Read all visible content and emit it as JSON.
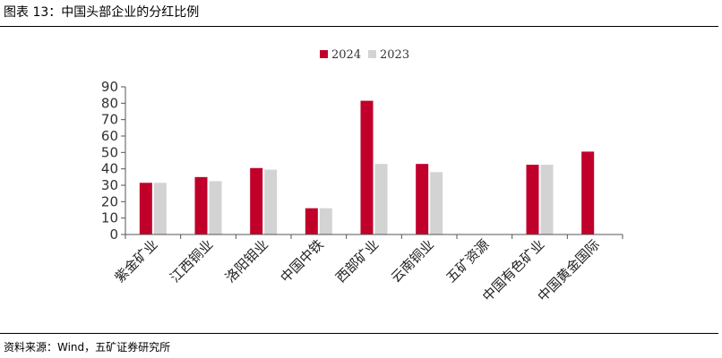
{
  "figure": {
    "title": "图表 13：中国头部企业的分红比例",
    "source": "资料来源：Wind，五矿证券研究所"
  },
  "colors": {
    "series_2024": "#c0002a",
    "series_2023": "#d3d3d3",
    "axis": "#555555"
  },
  "chart_data": {
    "type": "bar",
    "title": "",
    "xlabel": "",
    "ylabel": "",
    "ylim": [
      0,
      90
    ],
    "yticks": [
      0,
      10,
      20,
      30,
      40,
      50,
      60,
      70,
      80,
      90
    ],
    "grid": false,
    "legend_position": "top-center",
    "categories": [
      "紫金矿业",
      "江西铜业",
      "洛阳钼业",
      "中国中铁",
      "西部矿业",
      "云南铜业",
      "五矿资源",
      "中国有色矿业",
      "中国黄金国际"
    ],
    "series": [
      {
        "name": "2024",
        "values": [
          31.5,
          35,
          40.5,
          16,
          81.5,
          43,
          null,
          42.5,
          50.5
        ]
      },
      {
        "name": "2023",
        "values": [
          31.5,
          32.5,
          39.5,
          16,
          43,
          38,
          null,
          42.5,
          null
        ]
      }
    ]
  }
}
